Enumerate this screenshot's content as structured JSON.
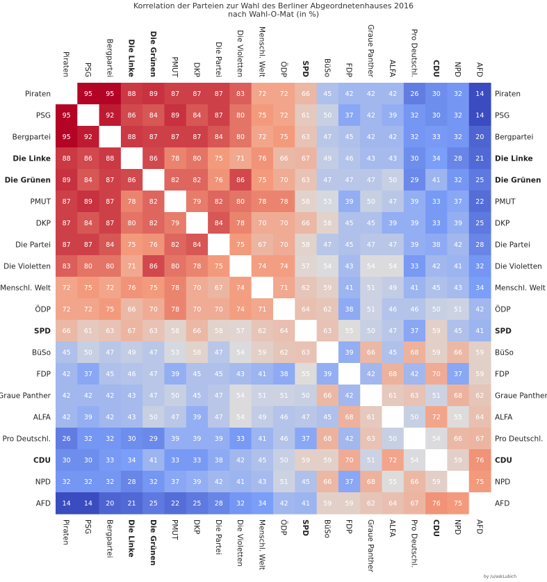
{
  "chart_data": {
    "type": "heatmap",
    "title": "Korrelation der Parteien zur Wahl des Berliner Abgeordnetenhauses 2016",
    "subtitle": "nach Wahl-O-Mat (in %)",
    "credit": "by /u/askLubich",
    "labels": [
      "Piraten",
      "PSG",
      "Bergpartei",
      "Die Linke",
      "Die Grünen",
      "PMUT",
      "DKP",
      "Die Partei",
      "Die Violetten",
      "Menschl. Welt",
      "ÖDP",
      "SPD",
      "BüSo",
      "FDP",
      "Graue Panther",
      "ALFA",
      "Pro Deutschl.",
      "CDU",
      "NPD",
      "AFD"
    ],
    "bold_labels": [
      "Die Linke",
      "Die Grünen",
      "SPD",
      "CDU"
    ],
    "values": [
      [
        null,
        95,
        95,
        88,
        89,
        87,
        87,
        87,
        83,
        72,
        72,
        66,
        45,
        42,
        42,
        42,
        26,
        30,
        32,
        14
      ],
      [
        95,
        null,
        92,
        86,
        84,
        89,
        84,
        87,
        80,
        75,
        72,
        61,
        50,
        37,
        42,
        39,
        32,
        30,
        32,
        14
      ],
      [
        95,
        92,
        null,
        88,
        87,
        87,
        87,
        84,
        80,
        72,
        75,
        63,
        47,
        45,
        42,
        42,
        32,
        33,
        32,
        20
      ],
      [
        88,
        86,
        88,
        null,
        86,
        78,
        80,
        75,
        71,
        76,
        66,
        67,
        49,
        46,
        43,
        43,
        30,
        34,
        28,
        21
      ],
      [
        89,
        84,
        87,
        86,
        null,
        82,
        82,
        76,
        86,
        75,
        70,
        63,
        47,
        47,
        47,
        50,
        29,
        41,
        32,
        25
      ],
      [
        87,
        89,
        87,
        78,
        82,
        null,
        79,
        82,
        80,
        78,
        78,
        58,
        53,
        39,
        50,
        47,
        39,
        33,
        37,
        22
      ],
      [
        87,
        84,
        87,
        80,
        82,
        79,
        null,
        84,
        78,
        70,
        70,
        66,
        58,
        45,
        45,
        39,
        39,
        33,
        39,
        25
      ],
      [
        87,
        87,
        84,
        75,
        76,
        82,
        84,
        null,
        75,
        67,
        70,
        58,
        47,
        45,
        47,
        47,
        39,
        38,
        42,
        28
      ],
      [
        83,
        80,
        80,
        71,
        86,
        80,
        78,
        75,
        null,
        74,
        74,
        57,
        54,
        43,
        54,
        54,
        33,
        42,
        41,
        32
      ],
      [
        72,
        75,
        72,
        76,
        75,
        78,
        70,
        67,
        74,
        null,
        71,
        62,
        59,
        41,
        51,
        49,
        41,
        45,
        43,
        34
      ],
      [
        72,
        72,
        75,
        66,
        70,
        78,
        70,
        70,
        74,
        71,
        null,
        64,
        62,
        38,
        51,
        46,
        46,
        50,
        51,
        42
      ],
      [
        66,
        61,
        63,
        67,
        63,
        58,
        66,
        58,
        57,
        62,
        64,
        null,
        63,
        55,
        50,
        47,
        37,
        59,
        45,
        41
      ],
      [
        45,
        50,
        47,
        49,
        47,
        53,
        58,
        47,
        54,
        59,
        62,
        63,
        null,
        39,
        66,
        45,
        68,
        59,
        66,
        59
      ],
      [
        42,
        37,
        45,
        46,
        47,
        39,
        45,
        45,
        43,
        41,
        38,
        55,
        39,
        null,
        42,
        68,
        42,
        70,
        37,
        59
      ],
      [
        42,
        42,
        42,
        43,
        47,
        50,
        45,
        47,
        54,
        51,
        51,
        50,
        66,
        42,
        null,
        61,
        63,
        51,
        68,
        62
      ],
      [
        42,
        39,
        42,
        43,
        50,
        47,
        39,
        47,
        54,
        49,
        46,
        47,
        45,
        68,
        61,
        null,
        50,
        72,
        55,
        64
      ],
      [
        26,
        32,
        32,
        30,
        29,
        39,
        39,
        39,
        33,
        41,
        46,
        37,
        68,
        42,
        63,
        50,
        null,
        54,
        66,
        67
      ],
      [
        30,
        30,
        33,
        34,
        41,
        33,
        33,
        38,
        42,
        45,
        50,
        59,
        59,
        70,
        51,
        72,
        54,
        null,
        59,
        76
      ],
      [
        32,
        32,
        32,
        28,
        32,
        37,
        39,
        42,
        41,
        43,
        51,
        45,
        66,
        37,
        68,
        55,
        66,
        59,
        null,
        75
      ],
      [
        14,
        14,
        20,
        21,
        25,
        22,
        25,
        28,
        32,
        34,
        42,
        41,
        59,
        59,
        62,
        64,
        67,
        76,
        75,
        null
      ]
    ],
    "colormap": "coolwarm",
    "vmin": 14,
    "vmax": 95
  }
}
